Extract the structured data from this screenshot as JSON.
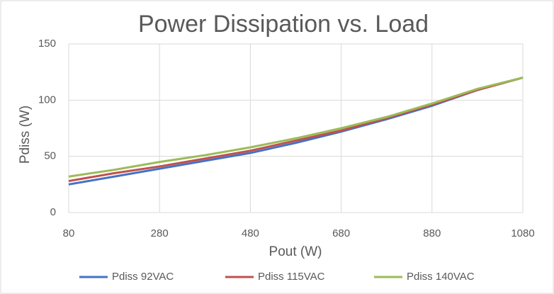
{
  "chart_data": {
    "type": "line",
    "title": "Power Dissipation vs. Load",
    "x_label": "Pout (W)",
    "y_label": "Pdiss (W)",
    "x": [
      80,
      180,
      280,
      380,
      480,
      580,
      680,
      780,
      880,
      980,
      1080
    ],
    "series": [
      {
        "name": "Pdiss 92VAC",
        "color": "#4472c4",
        "values": [
          25,
          32,
          39,
          46,
          53,
          62,
          72,
          83,
          95,
          109,
          120
        ]
      },
      {
        "name": "Pdiss 115VAC",
        "color": "#c0504d",
        "values": [
          28,
          35,
          41,
          48,
          55,
          64,
          73,
          84,
          96,
          109,
          120
        ]
      },
      {
        "name": "Pdiss 140VAC",
        "color": "#9bbb59",
        "values": [
          32,
          38,
          45,
          51,
          58,
          66,
          75,
          85,
          97,
          110,
          120
        ]
      }
    ],
    "xlim": [
      80,
      1080
    ],
    "xticks": [
      80,
      280,
      480,
      680,
      880,
      1080
    ],
    "ylim": [
      0,
      150
    ],
    "yticks": [
      0,
      50,
      100,
      150
    ],
    "grid": true,
    "legend": "bottom"
  }
}
